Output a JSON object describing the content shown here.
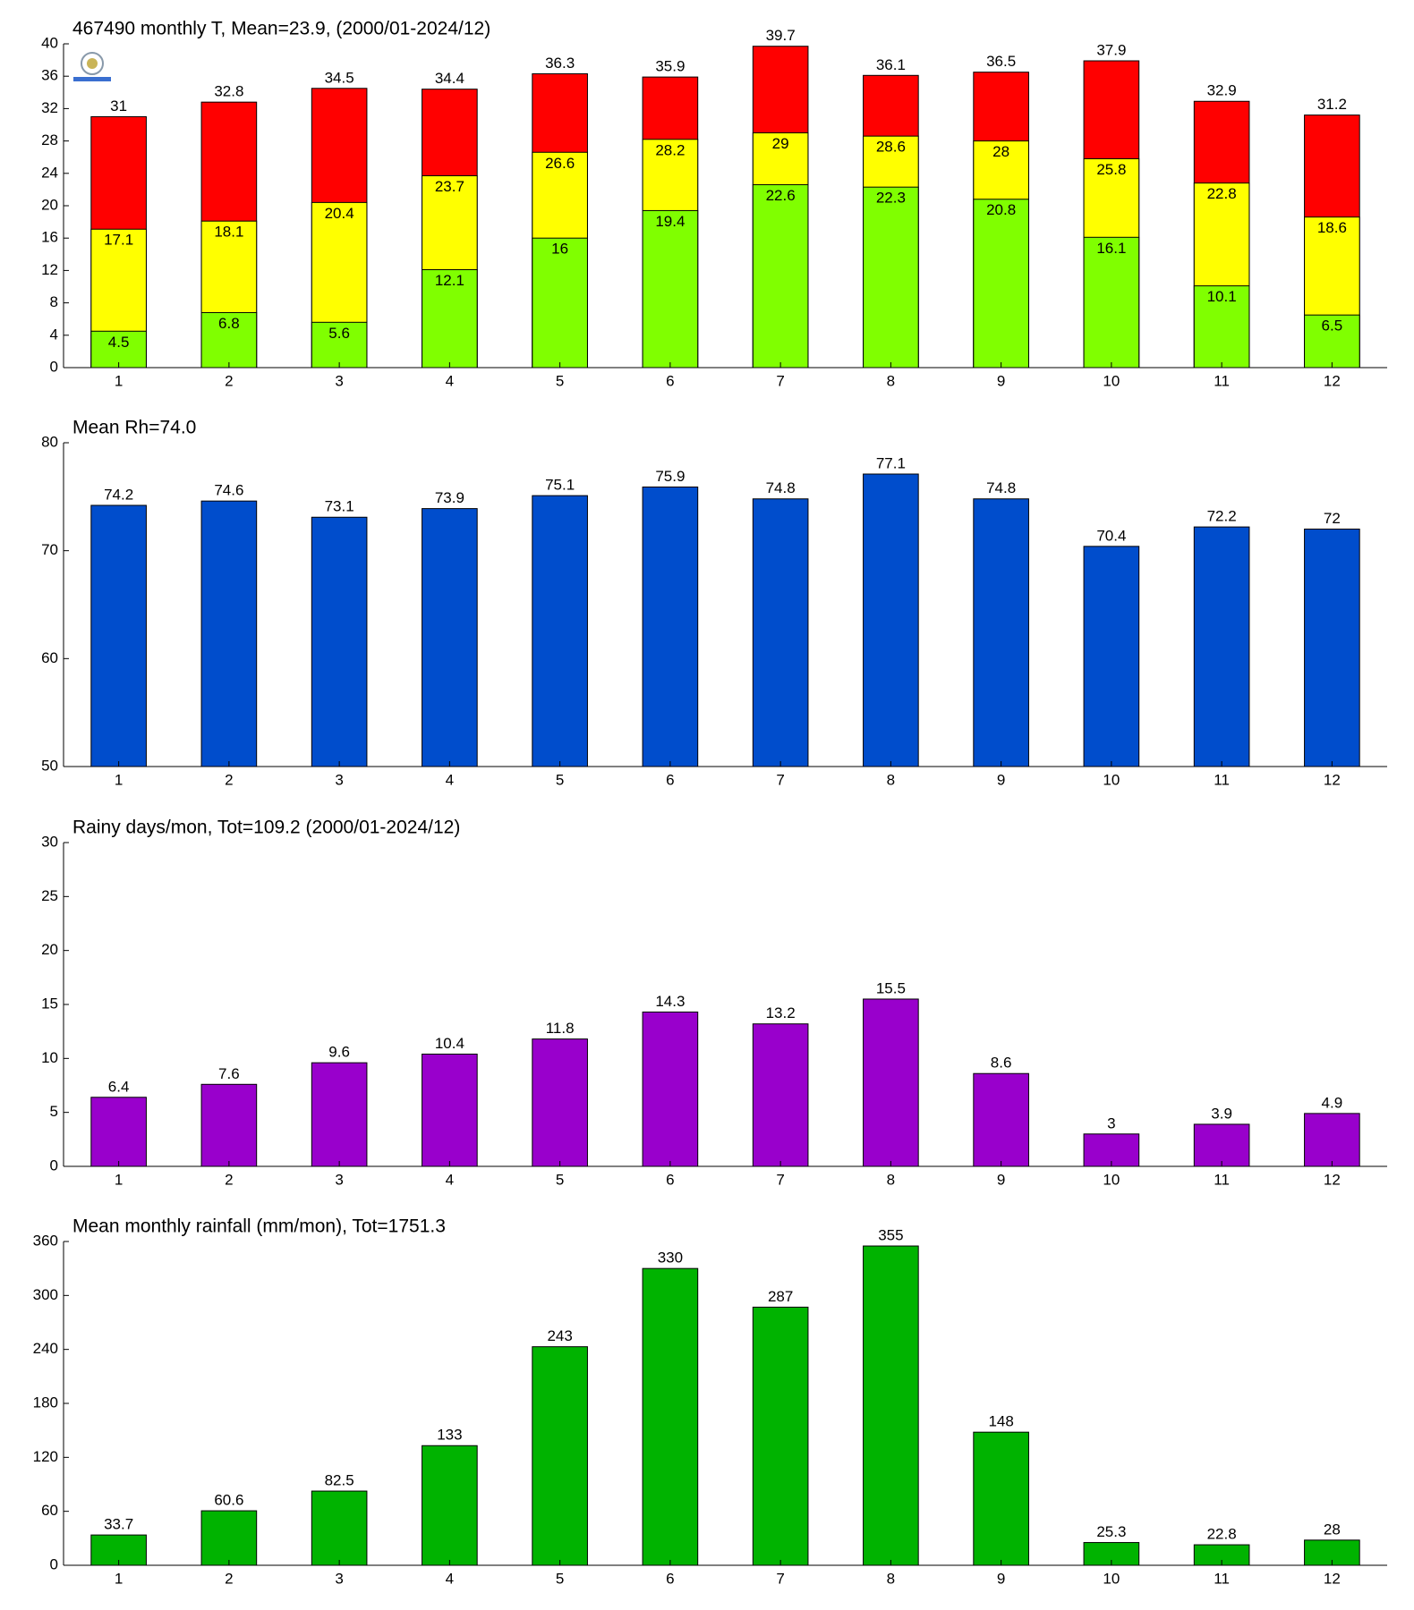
{
  "chart_data": [
    {
      "type": "bar",
      "title": "467490 monthly T, Mean=23.9, (2000/01-2024/12)",
      "categories": [
        "1",
        "2",
        "3",
        "4",
        "5",
        "6",
        "7",
        "8",
        "9",
        "10",
        "11",
        "12"
      ],
      "series": [
        {
          "color": "#ff0000",
          "values": [
            31,
            32.8,
            34.5,
            34.4,
            36.3,
            35.9,
            39.7,
            36.1,
            36.5,
            37.9,
            32.9,
            31.2
          ]
        },
        {
          "color": "#ffff00",
          "values": [
            17.1,
            18.1,
            20.4,
            23.7,
            26.6,
            28.2,
            29,
            28.6,
            28,
            25.8,
            22.8,
            18.6
          ]
        },
        {
          "color": "#80ff00",
          "values": [
            4.5,
            6.8,
            5.6,
            12.1,
            16,
            19.4,
            22.6,
            22.3,
            20.8,
            16.1,
            10.1,
            6.5
          ]
        }
      ],
      "ylim": [
        0,
        40
      ],
      "yticks": [
        0,
        4,
        8,
        12,
        16,
        20,
        24,
        28,
        32,
        36,
        40
      ]
    },
    {
      "type": "bar",
      "title": "Mean Rh=74.0",
      "categories": [
        "1",
        "2",
        "3",
        "4",
        "5",
        "6",
        "7",
        "8",
        "9",
        "10",
        "11",
        "12"
      ],
      "series": [
        {
          "color": "#004dcc",
          "values": [
            74.2,
            74.6,
            73.1,
            73.9,
            75.1,
            75.9,
            74.8,
            77.1,
            74.8,
            70.4,
            72.2,
            72
          ]
        }
      ],
      "ylim": [
        50,
        80
      ],
      "yticks": [
        50,
        60,
        70,
        80
      ]
    },
    {
      "type": "bar",
      "title": "Rainy days/mon, Tot=109.2 (2000/01-2024/12)",
      "categories": [
        "1",
        "2",
        "3",
        "4",
        "5",
        "6",
        "7",
        "8",
        "9",
        "10",
        "11",
        "12"
      ],
      "series": [
        {
          "color": "#9900cc",
          "values": [
            6.4,
            7.6,
            9.6,
            10.4,
            11.8,
            14.3,
            13.2,
            15.5,
            8.6,
            3,
            3.9,
            4.9
          ]
        }
      ],
      "ylim": [
        0,
        30
      ],
      "yticks": [
        0,
        5,
        10,
        15,
        20,
        25,
        30
      ]
    },
    {
      "type": "bar",
      "title": "Mean monthly rainfall (mm/mon), Tot=1751.3",
      "categories": [
        "1",
        "2",
        "3",
        "4",
        "5",
        "6",
        "7",
        "8",
        "9",
        "10",
        "11",
        "12"
      ],
      "series": [
        {
          "color": "#00b300",
          "values": [
            33.7,
            60.6,
            82.5,
            133,
            243,
            330,
            287,
            355,
            148,
            25.3,
            22.8,
            28
          ]
        }
      ],
      "ylim": [
        0,
        360
      ],
      "yticks": [
        0,
        60,
        120,
        180,
        240,
        300,
        360
      ]
    }
  ]
}
